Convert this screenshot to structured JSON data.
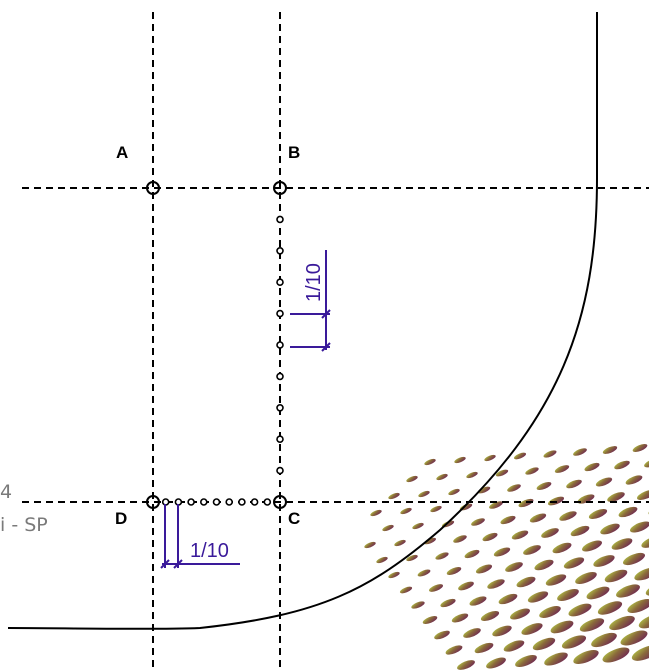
{
  "points": {
    "a": "A",
    "b": "B",
    "c": "C",
    "d": "D"
  },
  "dimensions": {
    "vertical": "1/10",
    "horizontal": "1/10"
  },
  "side_text": {
    "line1": "4",
    "line2": "i - SP"
  },
  "colors": {
    "line": "#000000",
    "dimension": "#3a1a9a",
    "side_text": "#7a7a7a",
    "decor_start": "#a8c83a",
    "decor_end": "#7a1a5a"
  }
}
